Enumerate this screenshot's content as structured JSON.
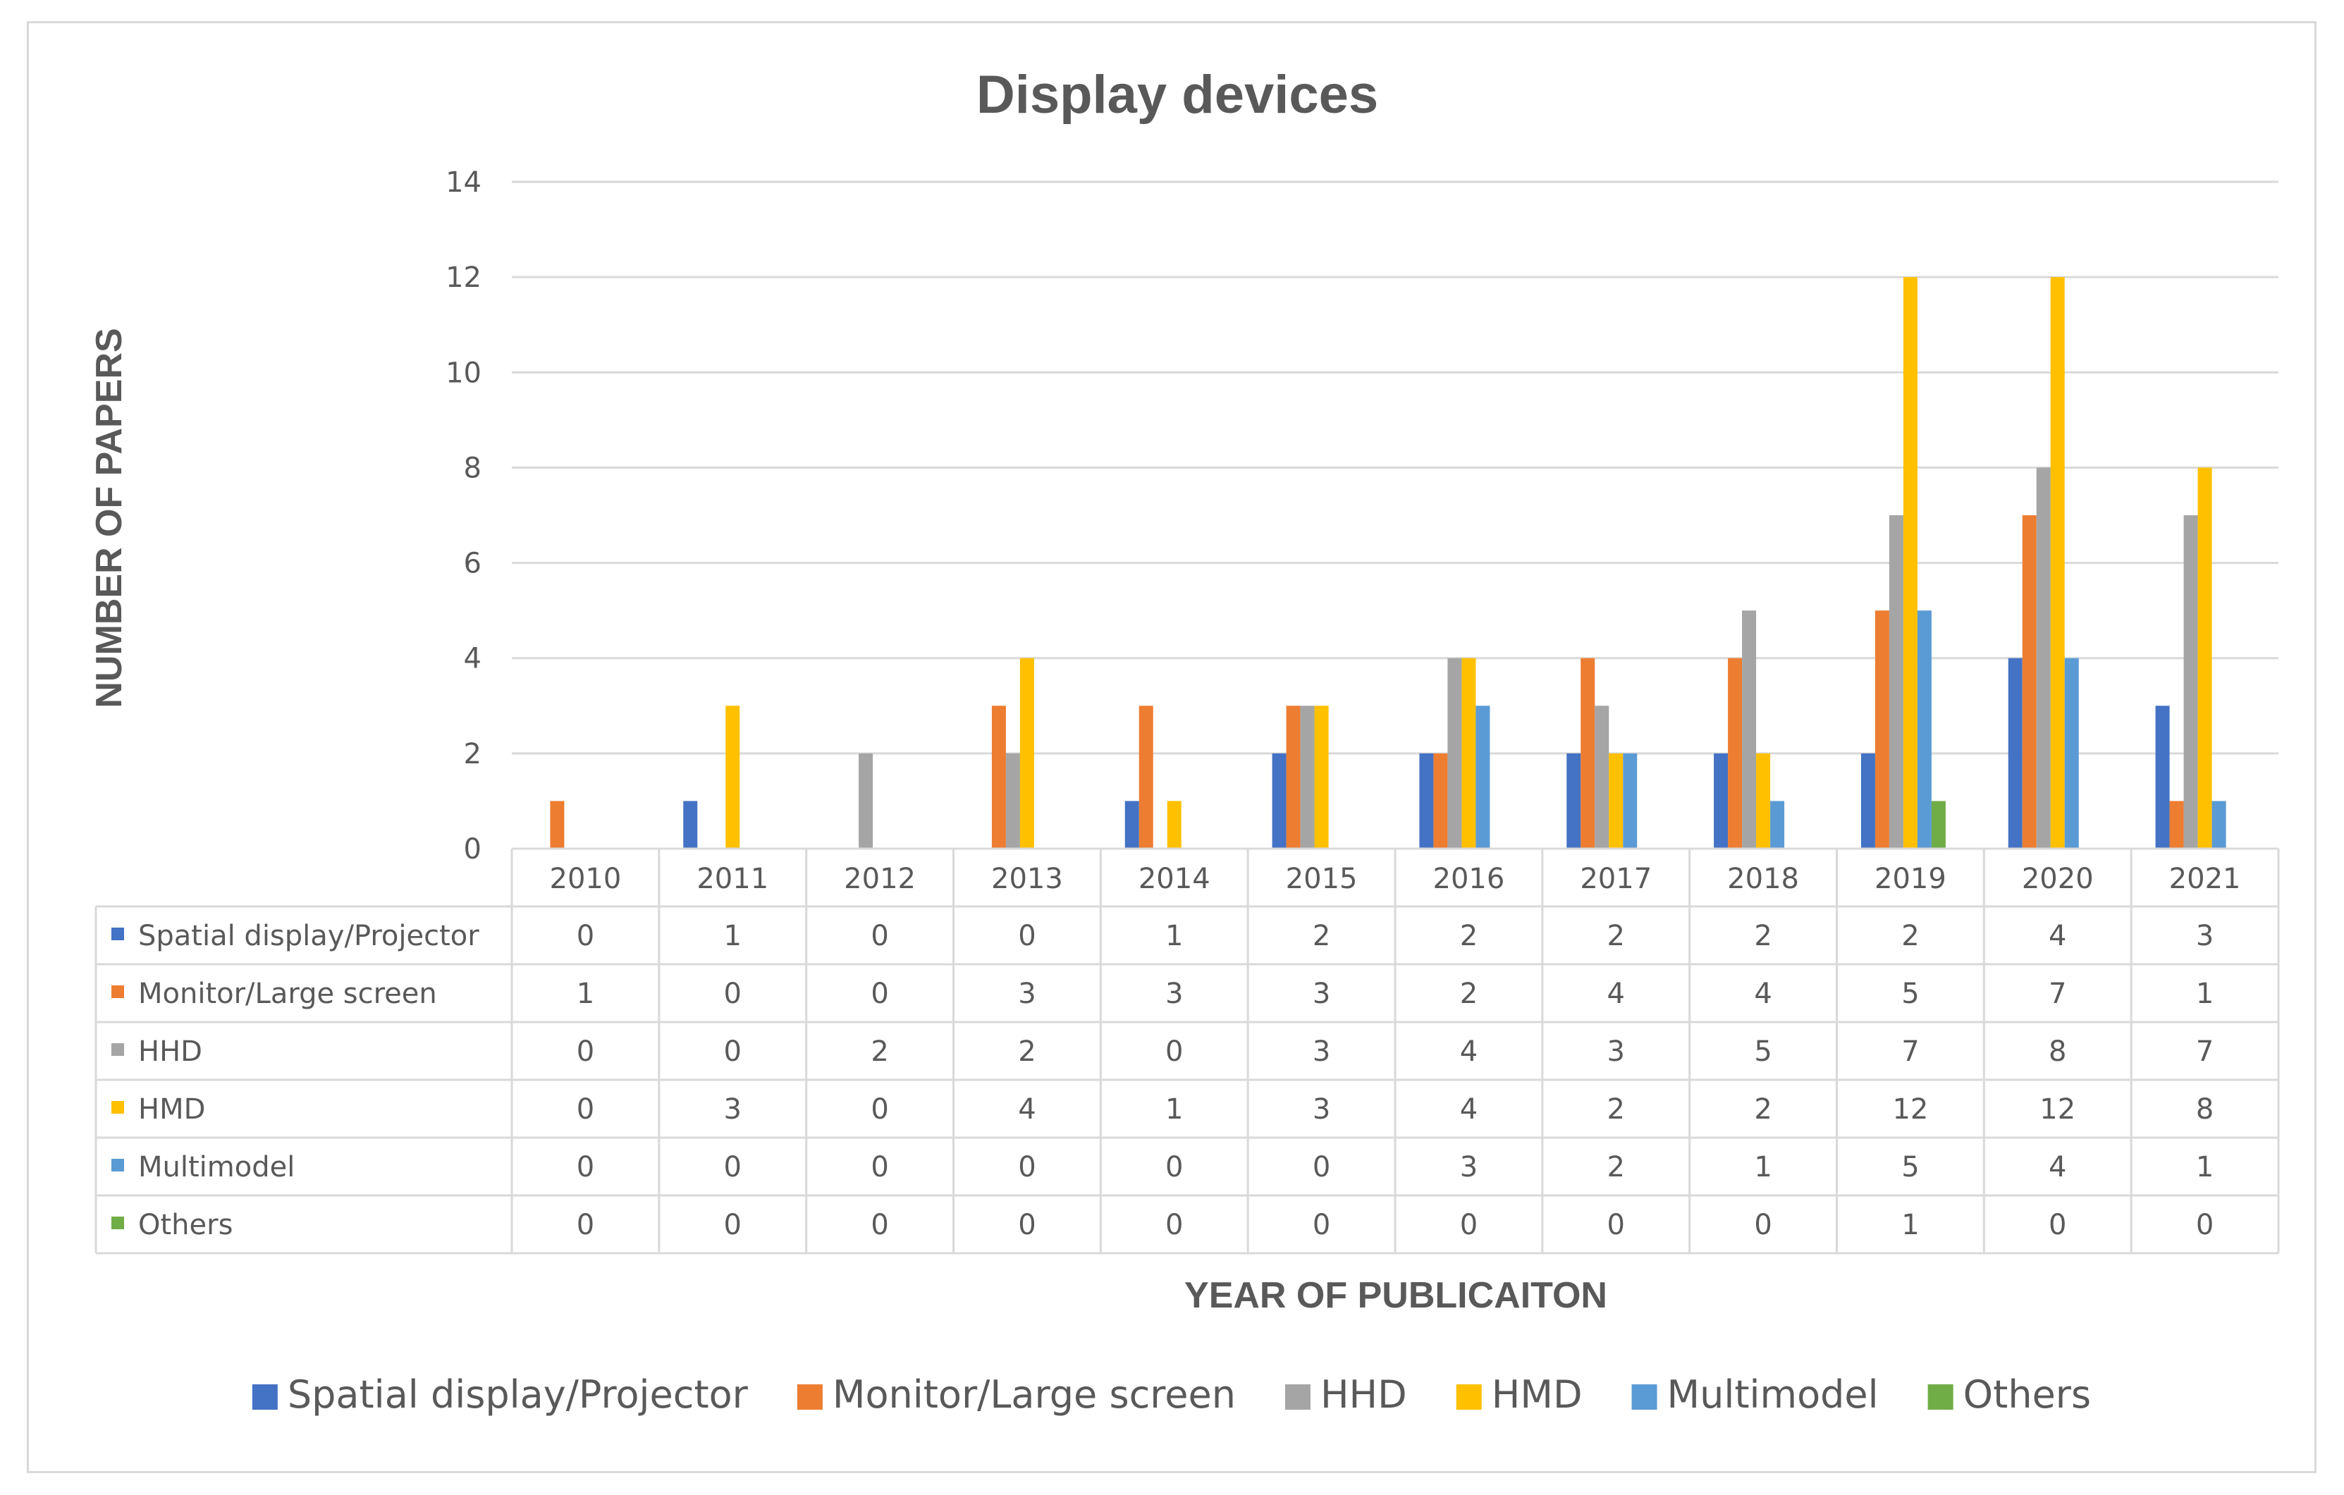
{
  "chart_data": {
    "type": "bar",
    "title": "Display devices",
    "xlabel": "YEAR OF PUBLICAITON",
    "ylabel": "NUMBER OF PAPERS",
    "ylim": [
      0,
      14
    ],
    "yticks": [
      0,
      2,
      4,
      6,
      8,
      10,
      12,
      14
    ],
    "grid": true,
    "legend": "bottom",
    "data_table": true,
    "categories": [
      "2010",
      "2011",
      "2012",
      "2013",
      "2014",
      "2015",
      "2016",
      "2017",
      "2018",
      "2019",
      "2020",
      "2021"
    ],
    "series": [
      {
        "name": "Spatial display/Projector",
        "color": "#4472c4",
        "values": [
          0,
          1,
          0,
          0,
          1,
          2,
          2,
          2,
          2,
          2,
          4,
          3
        ]
      },
      {
        "name": "Monitor/Large screen",
        "color": "#ed7d31",
        "values": [
          1,
          0,
          0,
          3,
          3,
          3,
          2,
          4,
          4,
          5,
          7,
          1
        ]
      },
      {
        "name": "HHD",
        "color": "#a5a5a5",
        "values": [
          0,
          0,
          2,
          2,
          0,
          3,
          4,
          3,
          5,
          7,
          8,
          7
        ]
      },
      {
        "name": "HMD",
        "color": "#ffc000",
        "values": [
          0,
          3,
          0,
          4,
          1,
          3,
          4,
          2,
          2,
          12,
          12,
          8
        ]
      },
      {
        "name": "Multimodel",
        "color": "#5b9bd5",
        "values": [
          0,
          0,
          0,
          0,
          0,
          0,
          3,
          2,
          1,
          5,
          4,
          1
        ]
      },
      {
        "name": "Others",
        "color": "#70ad47",
        "values": [
          0,
          0,
          0,
          0,
          0,
          0,
          0,
          0,
          0,
          1,
          0,
          0
        ]
      }
    ]
  }
}
